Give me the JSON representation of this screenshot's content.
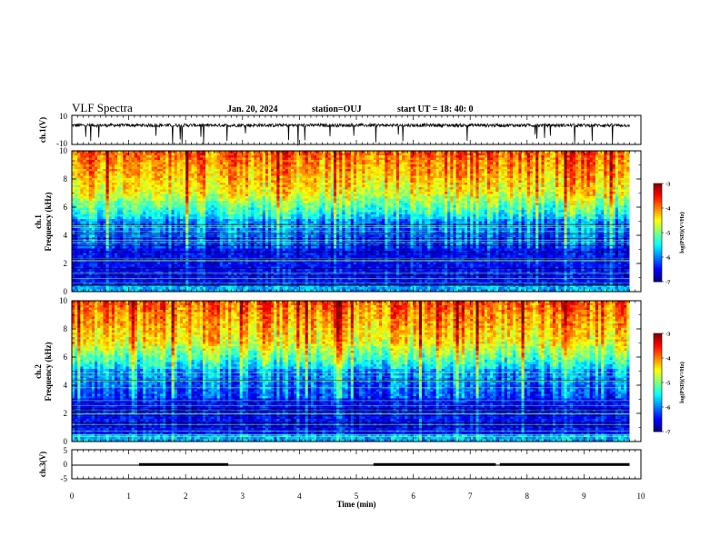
{
  "header": {
    "title": "VLF Spectra",
    "date": "Jan. 20, 2024",
    "station": "station=OUJ",
    "start": "start UT = 18: 40: 0"
  },
  "chart_data": [
    {
      "type": "line",
      "panel": "ch1-waveform",
      "ylabel": "ch.1(V)",
      "yticks": [
        "10",
        "-10"
      ],
      "ylim": [
        -10,
        10
      ],
      "xlim": [
        0,
        10
      ],
      "description_level": 3.2
    },
    {
      "type": "heatmap",
      "panel": "ch1-spectrogram",
      "ylabel": "ch.1\nFrequency (kHz)",
      "ylabel_lines": [
        "ch.1",
        "Frequency (kHz)"
      ],
      "yticks": [
        "0",
        "2",
        "4",
        "6",
        "8",
        "10"
      ],
      "ylim": [
        0,
        10
      ],
      "xlim": [
        0,
        9.8
      ],
      "colorbar": {
        "label": "log(PSD)(V²/Hz)",
        "ticks": [
          "-3",
          "-4",
          "-5",
          "-6",
          "-7"
        ],
        "range": [
          -7,
          -3
        ]
      }
    },
    {
      "type": "heatmap",
      "panel": "ch2-spectrogram",
      "ylabel_lines": [
        "ch.2",
        "Frequency (kHz)"
      ],
      "yticks": [
        "0",
        "2",
        "4",
        "6",
        "8",
        "10"
      ],
      "ylim": [
        0,
        10
      ],
      "xlim": [
        0,
        9.8
      ],
      "colorbar": {
        "label": "log(PSD)(V²/Hz)",
        "ticks": [
          "-3",
          "-4",
          "-5",
          "-6",
          "-7"
        ],
        "range": [
          -7,
          -3
        ]
      }
    },
    {
      "type": "line",
      "panel": "ch3-trace",
      "ylabel": "ch.3(V)",
      "yticks": [
        "5",
        "0",
        "-5"
      ],
      "ylim": [
        -5,
        5
      ],
      "xlim": [
        0,
        10
      ],
      "baseline": 0,
      "raised_segments": [
        [
          1.18,
          2.75
        ],
        [
          5.3,
          7.45
        ],
        [
          7.52,
          9.8
        ]
      ]
    }
  ],
  "xaxis": {
    "label": "Time (min)",
    "ticks": [
      "0",
      "1",
      "2",
      "3",
      "4",
      "5",
      "6",
      "7",
      "8",
      "9",
      "10"
    ],
    "range": [
      0,
      10
    ]
  }
}
